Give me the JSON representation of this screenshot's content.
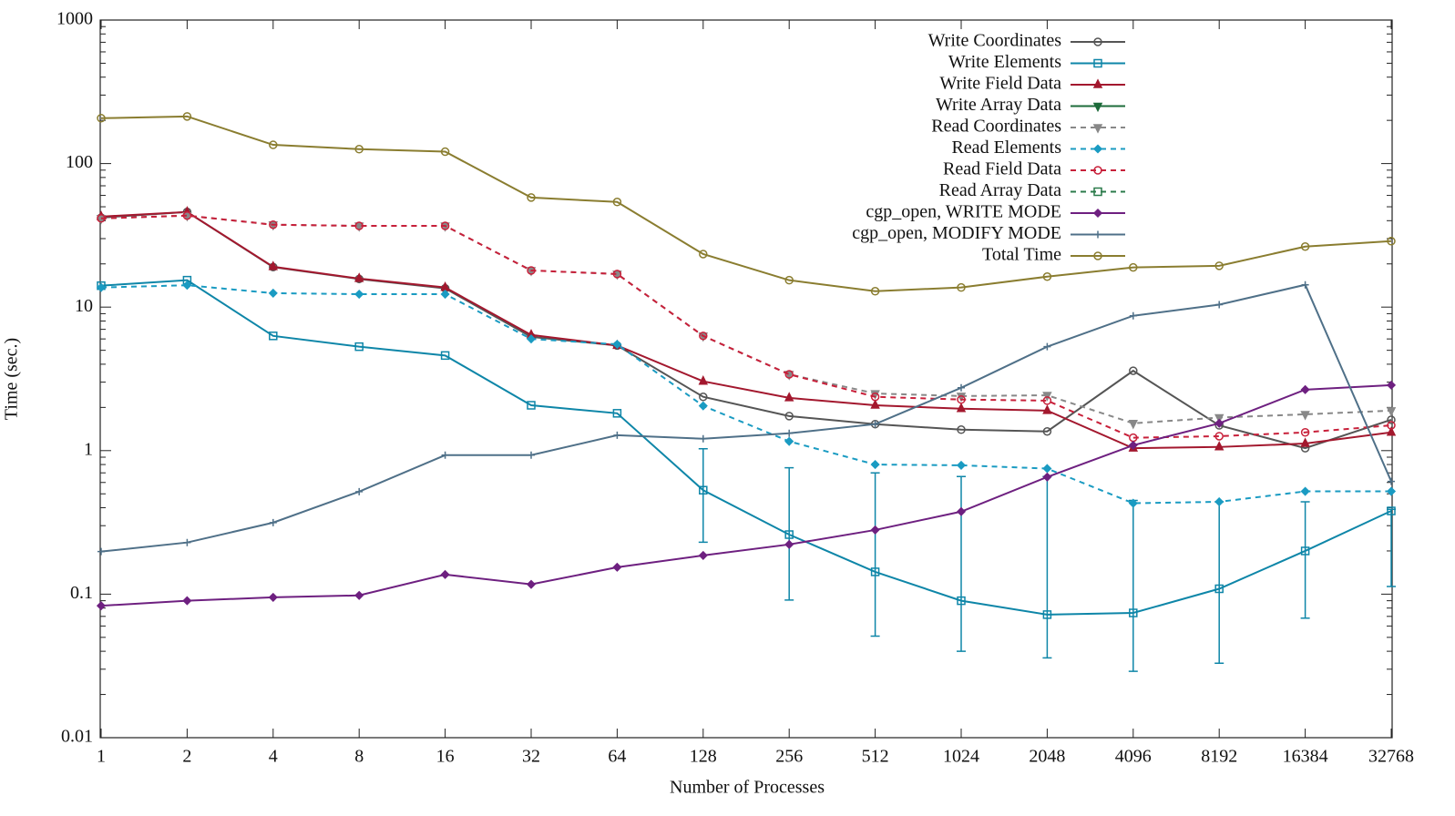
{
  "chart_data": {
    "type": "line",
    "xlabel": "Number of Processes",
    "ylabel": "Time (sec.)",
    "categories": [
      "1",
      "2",
      "4",
      "8",
      "16",
      "32",
      "64",
      "128",
      "256",
      "512",
      "1024",
      "2048",
      "4096",
      "8192",
      "16384",
      "32768"
    ],
    "ylim": [
      0.01,
      1000
    ],
    "yticks": [
      0.01,
      0.1,
      1,
      10,
      100,
      1000
    ],
    "log_y": true,
    "legend": "top-right",
    "series": [
      {
        "name": "Write Coordinates",
        "color": "#555555",
        "marker": "circle",
        "dash": false,
        "values": [
          42,
          46,
          19,
          15.7,
          13.5,
          6.2,
          5.4,
          2.37,
          1.74,
          1.53,
          1.4,
          1.36,
          3.6,
          1.5,
          1.04,
          1.64
        ]
      },
      {
        "name": "Write Elements",
        "color": "#0e86a8",
        "marker": "square",
        "dash": false,
        "values": [
          14.1,
          15.4,
          6.3,
          5.3,
          4.6,
          2.07,
          1.82,
          0.53,
          0.26,
          0.143,
          0.09,
          0.072,
          0.074,
          0.109,
          0.2,
          0.38
        ],
        "lower": [
          null,
          null,
          null,
          null,
          null,
          null,
          null,
          0.23,
          0.091,
          0.051,
          0.04,
          0.036,
          0.029,
          0.033,
          0.068,
          0.113
        ],
        "upper": [
          null,
          null,
          null,
          null,
          null,
          null,
          null,
          1.03,
          0.76,
          0.7,
          0.66,
          0.66,
          0.45,
          0.44,
          0.44,
          0.39
        ]
      },
      {
        "name": "Write Field Data",
        "color": "#a3182e",
        "marker": "triangle",
        "dash": false,
        "values": [
          42.7,
          46,
          19.1,
          15.8,
          13.7,
          6.4,
          5.4,
          3.04,
          2.33,
          2.07,
          1.96,
          1.9,
          1.04,
          1.06,
          1.12,
          1.34
        ]
      },
      {
        "name": "Write Array Data",
        "color": "#1d6b3a",
        "marker": "triangle-down",
        "dash": false,
        "values": [
          null,
          null,
          null,
          null,
          null,
          null,
          null,
          null,
          null,
          null,
          null,
          null,
          null,
          null,
          null,
          null
        ]
      },
      {
        "name": "Read Coordinates",
        "color": "#888888",
        "marker": "triangle-down",
        "dash": true,
        "values": [
          41.5,
          43.4,
          37.5,
          36.8,
          36.8,
          18,
          17,
          6.3,
          3.4,
          2.5,
          2.4,
          2.43,
          1.55,
          1.7,
          1.79,
          1.9
        ]
      },
      {
        "name": "Read Elements",
        "color": "#1a9bc2",
        "marker": "diamond",
        "dash": true,
        "values": [
          13.7,
          14.2,
          12.5,
          12.3,
          12.3,
          6.0,
          5.5,
          2.05,
          1.16,
          0.8,
          0.79,
          0.75,
          0.43,
          0.44,
          0.52,
          0.52
        ]
      },
      {
        "name": "Read Field Data",
        "color": "#c8203a",
        "marker": "circle",
        "dash": true,
        "values": [
          41.5,
          43.4,
          37.5,
          36.8,
          36.8,
          18,
          17,
          6.3,
          3.4,
          2.37,
          2.27,
          2.23,
          1.23,
          1.26,
          1.34,
          1.5
        ]
      },
      {
        "name": "Read Array Data",
        "color": "#2a7a4a",
        "marker": "square",
        "dash": true,
        "values": [
          null,
          null,
          null,
          null,
          null,
          null,
          null,
          null,
          null,
          null,
          null,
          null,
          null,
          null,
          null,
          null
        ]
      },
      {
        "name": "cgp_open, WRITE MODE",
        "color": "#6e2080",
        "marker": "diamond",
        "dash": false,
        "values": [
          0.083,
          0.09,
          0.095,
          0.098,
          0.137,
          0.117,
          0.154,
          0.186,
          0.222,
          0.28,
          0.376,
          0.655,
          1.09,
          1.55,
          2.66,
          2.86
        ]
      },
      {
        "name": "cgp_open, MODIFY MODE",
        "color": "#4f7088",
        "marker": "plus",
        "dash": false,
        "values": [
          0.198,
          0.229,
          0.315,
          0.518,
          0.93,
          0.93,
          1.28,
          1.21,
          1.32,
          1.53,
          2.74,
          5.3,
          8.7,
          10.4,
          14.3,
          0.61
        ]
      },
      {
        "name": "Total Time",
        "color": "#8a7d30",
        "marker": "circle",
        "dash": false,
        "values": [
          207,
          213,
          135,
          126,
          121,
          58,
          54,
          23.4,
          15.4,
          12.9,
          13.7,
          16.3,
          18.9,
          19.4,
          26.4,
          28.8
        ]
      }
    ]
  }
}
